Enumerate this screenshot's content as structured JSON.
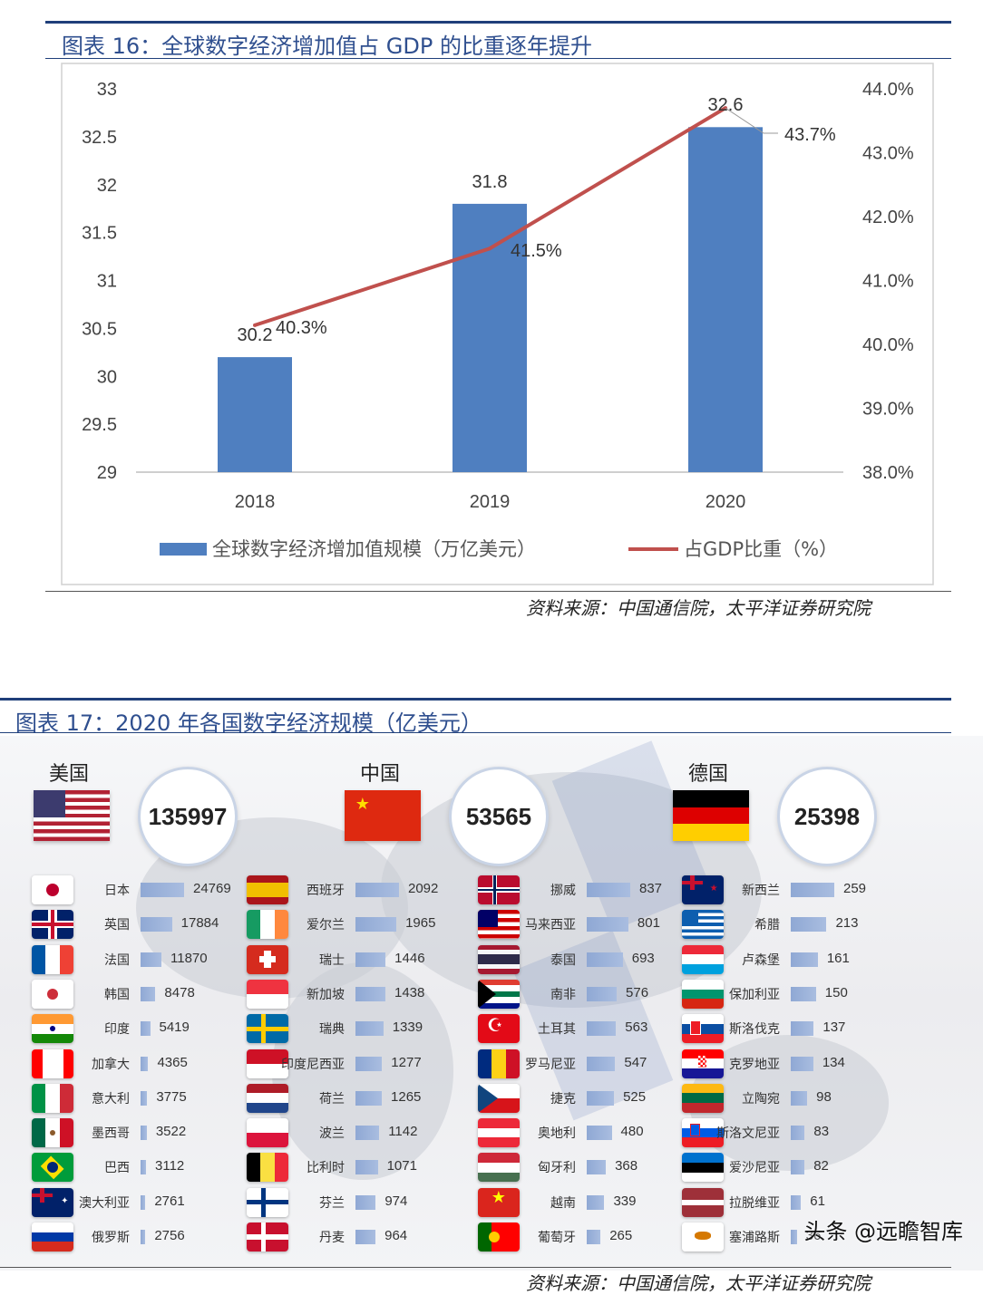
{
  "fig16": {
    "title": "图表 16：全球数字经济增加值占 GDP 的比重逐年提升",
    "source": "资料来源：中国通信院，太平洋证券研究院"
  },
  "chart_data": [
    {
      "type": "bar",
      "categories": [
        "2018",
        "2019",
        "2020"
      ],
      "series": [
        {
          "name": "全球数字经济增加值规模（万亿美元）",
          "type": "bar",
          "axis": "left",
          "values": [
            30.2,
            31.8,
            32.6
          ],
          "labels": [
            "30.2",
            "31.8",
            "32.6"
          ],
          "color": "#4f7fc0"
        },
        {
          "name": "占GDP比重（%）",
          "type": "line",
          "axis": "right",
          "values": [
            40.3,
            41.5,
            43.7
          ],
          "labels": [
            "40.3%",
            "41.5%",
            "43.7%"
          ],
          "color": "#c0504d"
        }
      ],
      "y_left": {
        "ylim": [
          29,
          33
        ],
        "ticks": [
          "29",
          "29.5",
          "30",
          "30.5",
          "31",
          "31.5",
          "32",
          "32.5",
          "33"
        ]
      },
      "y_right": {
        "ylim": [
          38,
          44
        ],
        "ticks": [
          "38.0%",
          "39.0%",
          "40.0%",
          "41.0%",
          "42.0%",
          "43.0%",
          "44.0%"
        ]
      },
      "legend": "bottom",
      "grid": false
    },
    {
      "type": "bar",
      "title": "图表 17：2020 年各国数字经济规模（亿美元）",
      "top3": [
        {
          "name": "美国",
          "value": 135997,
          "flag": "us"
        },
        {
          "name": "中国",
          "value": 53565,
          "flag": "cn"
        },
        {
          "name": "德国",
          "value": 25398,
          "flag": "de"
        }
      ],
      "columns": [
        [
          {
            "name": "日本",
            "value": 24769,
            "flag": "jp"
          },
          {
            "name": "英国",
            "value": 17884,
            "flag": "gb"
          },
          {
            "name": "法国",
            "value": 11870,
            "flag": "fr"
          },
          {
            "name": "韩国",
            "value": 8478,
            "flag": "kr"
          },
          {
            "name": "印度",
            "value": 5419,
            "flag": "in"
          },
          {
            "name": "加拿大",
            "value": 4365,
            "flag": "ca"
          },
          {
            "name": "意大利",
            "value": 3775,
            "flag": "it"
          },
          {
            "name": "墨西哥",
            "value": 3522,
            "flag": "mx"
          },
          {
            "name": "巴西",
            "value": 3112,
            "flag": "br"
          },
          {
            "name": "澳大利亚",
            "value": 2761,
            "flag": "au"
          },
          {
            "name": "俄罗斯",
            "value": 2756,
            "flag": "ru"
          }
        ],
        [
          {
            "name": "西班牙",
            "value": 2092,
            "flag": "es"
          },
          {
            "name": "爱尔兰",
            "value": 1965,
            "flag": "ie"
          },
          {
            "name": "瑞士",
            "value": 1446,
            "flag": "ch"
          },
          {
            "name": "新加坡",
            "value": 1438,
            "flag": "sg"
          },
          {
            "name": "瑞典",
            "value": 1339,
            "flag": "se"
          },
          {
            "name": "印度尼西亚",
            "value": 1277,
            "flag": "id"
          },
          {
            "name": "荷兰",
            "value": 1265,
            "flag": "nl"
          },
          {
            "name": "波兰",
            "value": 1142,
            "flag": "pl"
          },
          {
            "name": "比利时",
            "value": 1071,
            "flag": "be"
          },
          {
            "name": "芬兰",
            "value": 974,
            "flag": "fi"
          },
          {
            "name": "丹麦",
            "value": 964,
            "flag": "dk"
          }
        ],
        [
          {
            "name": "挪威",
            "value": 837,
            "flag": "no"
          },
          {
            "name": "马来西亚",
            "value": 801,
            "flag": "my"
          },
          {
            "name": "泰国",
            "value": 693,
            "flag": "th"
          },
          {
            "name": "南非",
            "value": 576,
            "flag": "za"
          },
          {
            "name": "土耳其",
            "value": 563,
            "flag": "tr"
          },
          {
            "name": "罗马尼亚",
            "value": 547,
            "flag": "ro"
          },
          {
            "name": "捷克",
            "value": 525,
            "flag": "cz"
          },
          {
            "name": "奥地利",
            "value": 480,
            "flag": "at"
          },
          {
            "name": "匈牙利",
            "value": 368,
            "flag": "hu"
          },
          {
            "name": "越南",
            "value": 339,
            "flag": "vn"
          },
          {
            "name": "葡萄牙",
            "value": 265,
            "flag": "pt"
          }
        ],
        [
          {
            "name": "新西兰",
            "value": 259,
            "flag": "nz"
          },
          {
            "name": "希腊",
            "value": 213,
            "flag": "gr"
          },
          {
            "name": "卢森堡",
            "value": 161,
            "flag": "lu"
          },
          {
            "name": "保加利亚",
            "value": 150,
            "flag": "bg"
          },
          {
            "name": "斯洛伐克",
            "value": 137,
            "flag": "sk"
          },
          {
            "name": "克罗地亚",
            "value": 134,
            "flag": "hr"
          },
          {
            "name": "立陶宛",
            "value": 98,
            "flag": "lt"
          },
          {
            "name": "斯洛文尼亚",
            "value": 83,
            "flag": "si"
          },
          {
            "name": "爱沙尼亚",
            "value": 82,
            "flag": "ee"
          },
          {
            "name": "拉脱维亚",
            "value": 61,
            "flag": "lv"
          },
          {
            "name": "塞浦路斯",
            "value": 36,
            "flag": "cy"
          }
        ]
      ]
    }
  ],
  "fig17": {
    "title": "图表 17：2020 年各国数字经济规模（亿美元）",
    "source": "资料来源：中国通信院，太平洋证券研究院",
    "brand": "头条 @远瞻智库"
  }
}
